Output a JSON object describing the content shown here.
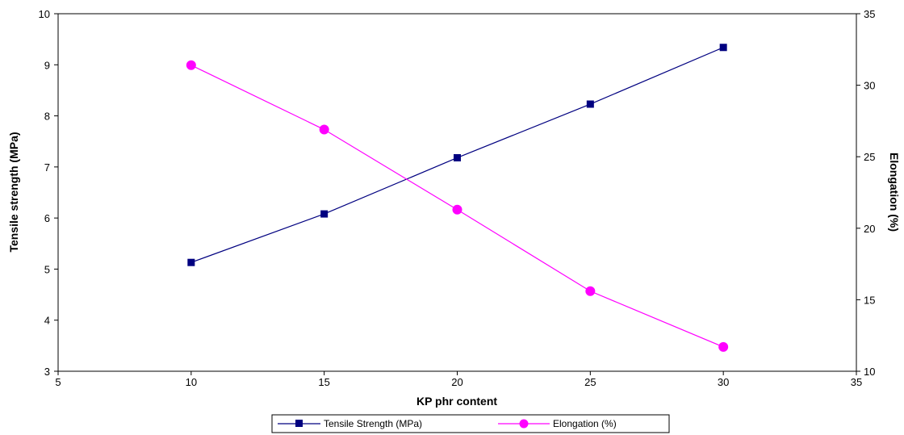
{
  "chart_data": {
    "type": "line",
    "xlabel": "KP phr content",
    "ylabel_left": "Tensile strength (MPa)",
    "ylabel_right": "Elongation (%)",
    "xlim": [
      5,
      35
    ],
    "x_ticks": [
      "5",
      "10",
      "15",
      "20",
      "25",
      "30",
      "35"
    ],
    "ylim_left": [
      3,
      10
    ],
    "y_ticks_left": [
      "3",
      "4",
      "5",
      "6",
      "7",
      "8",
      "9",
      "10"
    ],
    "ylim_right": [
      10,
      35
    ],
    "y_ticks_right": [
      "10",
      "15",
      "20",
      "25",
      "30",
      "35"
    ],
    "grid": false,
    "legend_position": "bottom",
    "series": [
      {
        "name": "Tensile Strength (MPa)",
        "axis": "left",
        "color": "#000080",
        "marker": "square",
        "x": [
          10,
          15,
          20,
          25,
          30
        ],
        "values": [
          5.13,
          6.08,
          7.18,
          8.23,
          9.34
        ]
      },
      {
        "name": "Elongation (%)",
        "axis": "right",
        "color": "#ff00ff",
        "marker": "circle",
        "x": [
          10,
          15,
          20,
          25,
          30
        ],
        "values": [
          31.4,
          26.9,
          21.3,
          15.6,
          11.7
        ]
      }
    ]
  }
}
